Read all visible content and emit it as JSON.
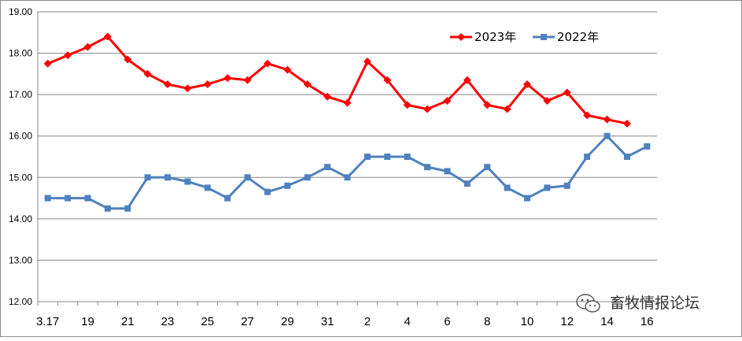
{
  "chart_data": {
    "type": "line",
    "x": [
      "3.17",
      "18",
      "19",
      "20",
      "21",
      "22",
      "23",
      "24",
      "25",
      "26",
      "27",
      "28",
      "29",
      "30",
      "31",
      "1",
      "2",
      "3",
      "4",
      "5",
      "6",
      "7",
      "8",
      "9",
      "10",
      "11",
      "12",
      "13",
      "14",
      "15",
      "16"
    ],
    "xtick_labels": [
      "3.17",
      "19",
      "21",
      "23",
      "25",
      "27",
      "29",
      "31",
      "2",
      "4",
      "6",
      "8",
      "10",
      "12",
      "14",
      "16"
    ],
    "ylim": [
      12.0,
      19.0
    ],
    "yticks": [
      "12.00",
      "13.00",
      "14.00",
      "15.00",
      "16.00",
      "17.00",
      "18.00",
      "19.00"
    ],
    "grid": true,
    "legend_position": "top-right",
    "series": [
      {
        "name": "2023年",
        "color": "#FF0000",
        "marker": "diamond",
        "values": [
          17.75,
          17.95,
          18.15,
          18.4,
          17.85,
          17.5,
          17.25,
          17.15,
          17.25,
          17.4,
          17.35,
          17.75,
          17.6,
          17.25,
          16.95,
          16.8,
          17.8,
          17.35,
          16.75,
          16.65,
          16.85,
          17.35,
          16.75,
          16.65,
          17.25,
          16.85,
          17.05,
          16.5,
          16.4,
          16.3,
          null
        ]
      },
      {
        "name": "2022年",
        "color": "#4F81BD",
        "marker": "square",
        "values": [
          14.5,
          14.5,
          14.5,
          14.25,
          14.25,
          15.0,
          15.0,
          14.9,
          14.75,
          14.5,
          15.0,
          14.65,
          14.8,
          15.0,
          15.25,
          15.0,
          15.5,
          15.5,
          15.5,
          15.25,
          15.15,
          14.85,
          15.25,
          14.75,
          14.5,
          14.75,
          14.8,
          15.5,
          16.0,
          15.5,
          15.75
        ]
      }
    ]
  },
  "watermark": {
    "text": "畜牧情报论坛",
    "icon": "wechat-icon"
  }
}
